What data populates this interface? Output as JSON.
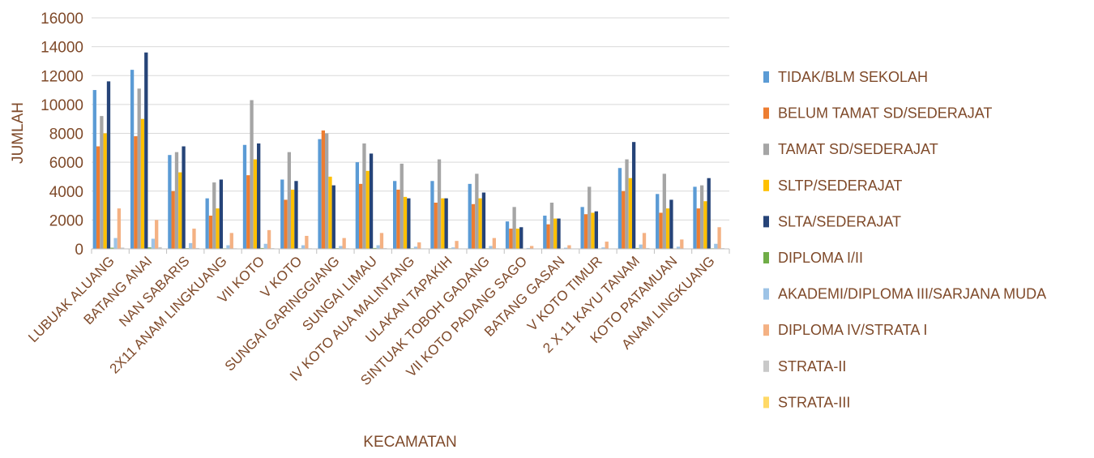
{
  "chart_data": {
    "type": "bar",
    "title": "",
    "xlabel": "KECAMATAN",
    "ylabel": "JUMLAH",
    "ylim": [
      0,
      16000
    ],
    "yticks": [
      0,
      2000,
      4000,
      6000,
      8000,
      10000,
      12000,
      14000,
      16000
    ],
    "grid": true,
    "legend_position": "right",
    "categories": [
      "LUBUAK ALUANG",
      "BATANG ANAI",
      "NAN SABARIS",
      "2X11 ANAM LINGKUANG",
      "VII KOTO",
      "V KOTO",
      "SUNGAI GARINGGIANG",
      "SUNGAI LIMAU",
      "IV KOTO AUA MALINTANG",
      "ULAKAN TAPAKIH",
      "SINTUAK TOBOH GADANG",
      "VII KOTO PADANG SAGO",
      "BATANG GASAN",
      "V KOTO TIMUR",
      "2 X 11 KAYU TANAM",
      "KOTO PATAMUAN",
      "ANAM LINGKUANG"
    ],
    "series": [
      {
        "name": "TIDAK/BLM SEKOLAH",
        "color": "#5b9bd5",
        "values": [
          11000,
          12400,
          6500,
          3500,
          7200,
          4800,
          7600,
          6000,
          4700,
          4700,
          4500,
          1900,
          2300,
          2900,
          5600,
          3800,
          4300
        ]
      },
      {
        "name": "BELUM TAMAT SD/SEDERAJAT",
        "color": "#ed7d31",
        "values": [
          7100,
          7800,
          4000,
          2300,
          5100,
          3400,
          8200,
          4500,
          4100,
          3200,
          3100,
          1400,
          1700,
          2400,
          4000,
          2500,
          2800
        ]
      },
      {
        "name": "TAMAT SD/SEDERAJAT",
        "color": "#a5a5a5",
        "values": [
          9200,
          11100,
          6700,
          4600,
          10300,
          6700,
          8000,
          7300,
          5900,
          6200,
          5200,
          2900,
          3200,
          4300,
          6200,
          5200,
          4400
        ]
      },
      {
        "name": "SLTP/SEDERAJAT",
        "color": "#ffc000",
        "values": [
          8000,
          9000,
          5300,
          2800,
          6200,
          4100,
          5000,
          5400,
          3600,
          3500,
          3500,
          1400,
          2100,
          2500,
          4900,
          2800,
          3300
        ]
      },
      {
        "name": "SLTA/SEDERAJAT",
        "color": "#264478",
        "values": [
          11600,
          13600,
          7100,
          4800,
          7300,
          4700,
          4400,
          6600,
          3500,
          3500,
          3900,
          1500,
          2100,
          2600,
          7400,
          3400,
          4900
        ]
      },
      {
        "name": "DIPLOMA I/II",
        "color": "#70ad47",
        "values": [
          80,
          100,
          50,
          40,
          60,
          40,
          50,
          60,
          40,
          40,
          40,
          20,
          20,
          30,
          60,
          30,
          40
        ]
      },
      {
        "name": "AKADEMI/DIPLOMA III/SARJANA MUDA",
        "color": "#9dc3e6",
        "values": [
          750,
          700,
          400,
          250,
          350,
          250,
          200,
          250,
          150,
          100,
          200,
          60,
          80,
          100,
          300,
          150,
          350
        ]
      },
      {
        "name": "DIPLOMA IV/STRATA I",
        "color": "#f4b183",
        "values": [
          2800,
          2000,
          1400,
          1100,
          1300,
          900,
          750,
          1100,
          450,
          550,
          750,
          200,
          250,
          500,
          1100,
          650,
          1500
        ]
      },
      {
        "name": "STRATA-II",
        "color": "#c9c9c9",
        "values": [
          90,
          120,
          60,
          40,
          50,
          40,
          40,
          50,
          30,
          30,
          40,
          10,
          20,
          20,
          60,
          30,
          50
        ]
      },
      {
        "name": "STRATA-III",
        "color": "#ffd966",
        "values": [
          10,
          15,
          5,
          5,
          5,
          5,
          5,
          5,
          5,
          5,
          5,
          2,
          2,
          3,
          8,
          5,
          5
        ]
      }
    ]
  }
}
